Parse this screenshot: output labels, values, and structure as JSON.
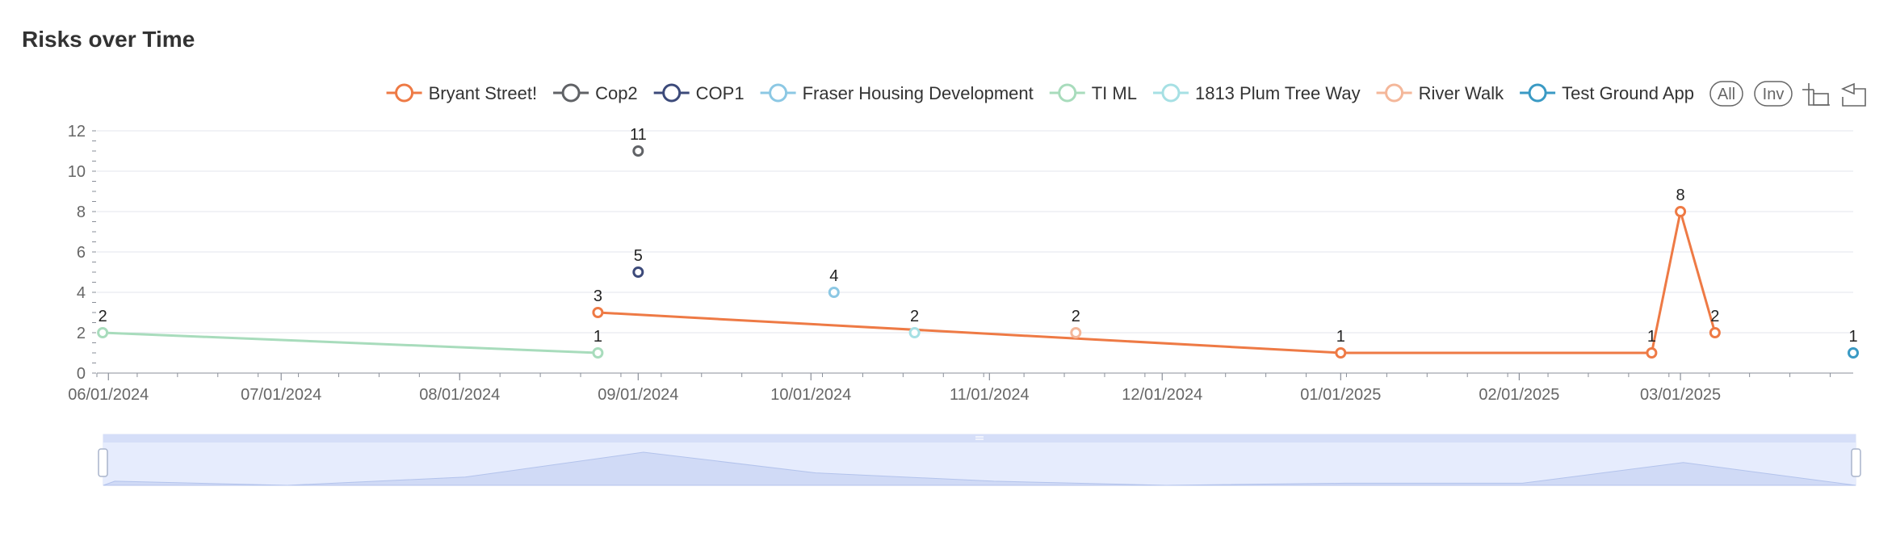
{
  "page": {
    "title": "Risks over Time"
  },
  "toolbar": {
    "all_label": "All",
    "inverse_label": "Inv",
    "zoom_icon": "data-zoom-icon",
    "reset_icon": "zoom-reset-icon"
  },
  "chart_data": {
    "type": "line",
    "title": "Risks over Time",
    "xlabel": "",
    "ylabel": "",
    "x_axis_type": "date",
    "xlim": [
      "2024-05-30",
      "2025-03-31"
    ],
    "ylim": [
      0,
      12
    ],
    "y_ticks": [
      0,
      2,
      4,
      6,
      8,
      10,
      12
    ],
    "x_tick_dates": [
      "2024-06-01",
      "2024-07-01",
      "2024-08-01",
      "2024-09-01",
      "2024-10-01",
      "2024-11-01",
      "2024-12-01",
      "2025-01-01",
      "2025-02-01",
      "2025-03-01"
    ],
    "x_tick_labels": [
      "06/01/2024",
      "07/01/2024",
      "08/01/2024",
      "09/01/2024",
      "10/01/2024",
      "11/01/2024",
      "12/01/2024",
      "01/01/2025",
      "02/01/2025",
      "03/01/2025"
    ],
    "grid": true,
    "legend_position": "top-right",
    "data_labels": true,
    "series": [
      {
        "name": "Bryant Street!",
        "color": "#ee7a45",
        "points": [
          [
            "2024-08-25",
            3
          ],
          [
            "2025-01-01",
            1
          ],
          [
            "2025-02-24",
            1
          ],
          [
            "2025-03-01",
            8
          ],
          [
            "2025-03-07",
            2
          ]
        ]
      },
      {
        "name": "Cop2",
        "color": "#606266",
        "points": [
          [
            "2024-09-01",
            11
          ]
        ]
      },
      {
        "name": "COP1",
        "color": "#3c4a7a",
        "points": [
          [
            "2024-09-01",
            5
          ]
        ]
      },
      {
        "name": "Fraser Housing Development",
        "color": "#8cc8e4",
        "points": [
          [
            "2024-10-05",
            4
          ]
        ]
      },
      {
        "name": "TI ML",
        "color": "#a8dcbc",
        "points": [
          [
            "2024-05-31",
            2
          ],
          [
            "2024-08-25",
            1
          ]
        ]
      },
      {
        "name": "1813 Plum Tree Way",
        "color": "#a6e0e4",
        "points": [
          [
            "2024-10-19",
            2
          ]
        ]
      },
      {
        "name": "River Walk",
        "color": "#f4b79a",
        "points": [
          [
            "2024-11-16",
            2
          ]
        ]
      },
      {
        "name": "Test Ground App",
        "color": "#3a9ac4",
        "points": [
          [
            "2025-03-31",
            1
          ]
        ]
      }
    ],
    "data_zoom": {
      "start": 0,
      "end": 100
    }
  }
}
